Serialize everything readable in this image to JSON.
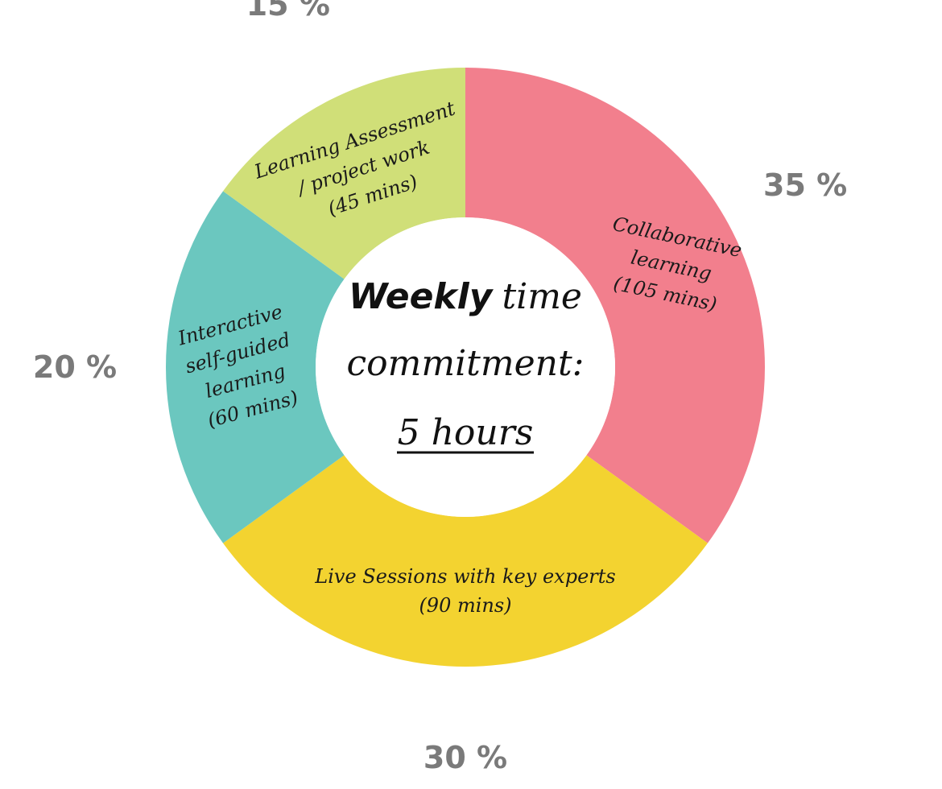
{
  "chart_data": {
    "type": "pie",
    "donut": true,
    "center_title": {
      "strong": "Weekly",
      "line1_rest": "time",
      "line2": "commitment:",
      "line3": "5 hours"
    },
    "slices": [
      {
        "label_lines": [
          "Collaborative",
          "learning",
          "(105 mins)"
        ],
        "value": 35,
        "percent_label": "35 %",
        "color": "#f27f8d"
      },
      {
        "label_lines": [
          "Live Sessions with key experts",
          "(90 mins)"
        ],
        "value": 30,
        "percent_label": "30 %",
        "color": "#f3d330"
      },
      {
        "label_lines": [
          "Interactive",
          "self-guided",
          "learning",
          "(60 mins)"
        ],
        "value": 20,
        "percent_label": "20 %",
        "color": "#6bc7bf"
      },
      {
        "label_lines": [
          "Learning Assessment",
          "/ project work",
          "(45 mins)"
        ],
        "value": 15,
        "percent_label": "15 %",
        "color": "#d0df78"
      }
    ]
  }
}
